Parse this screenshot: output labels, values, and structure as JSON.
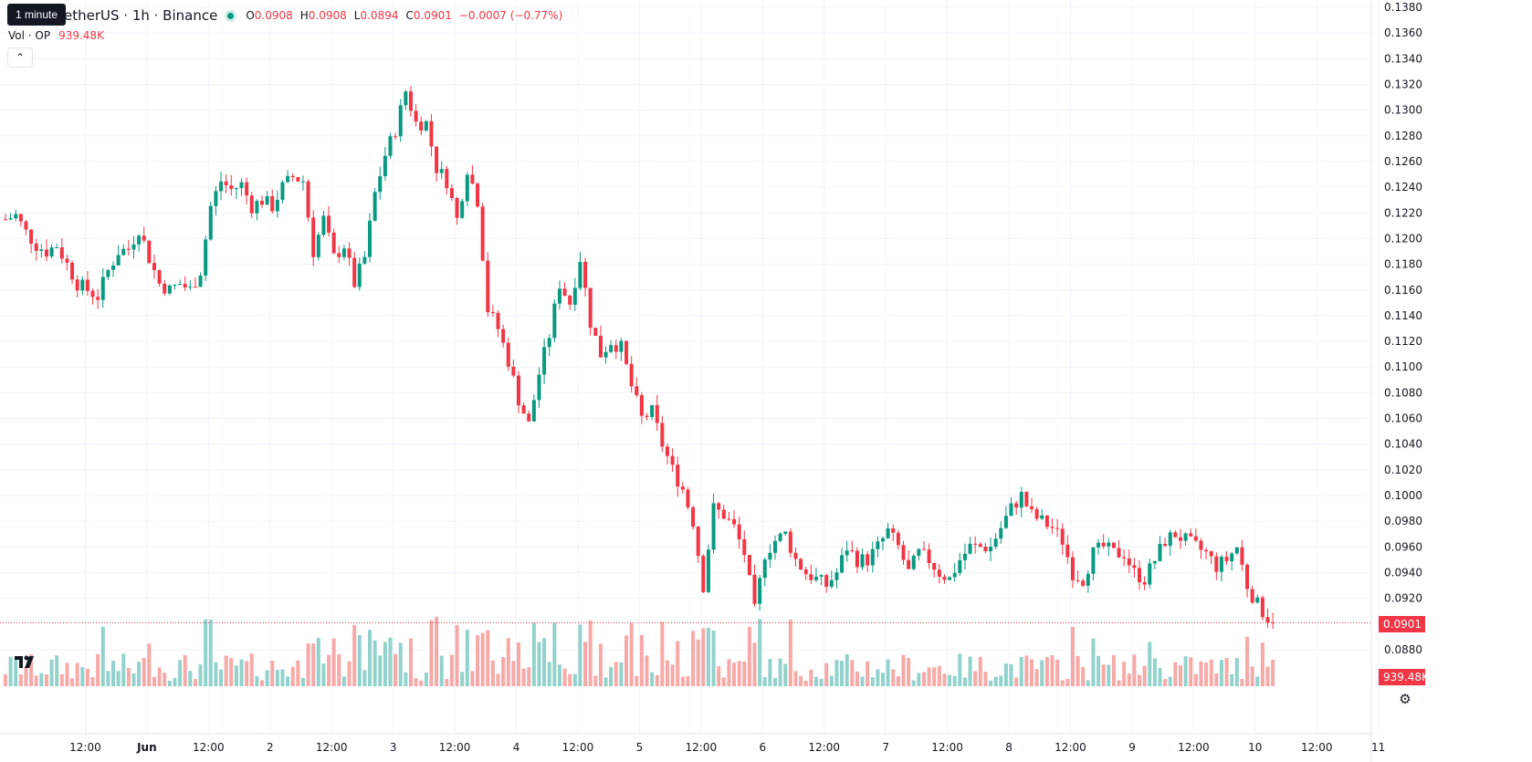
{
  "tooltip": "1 minute",
  "symbol_title": "etherUS · 1h · Binance",
  "ohlc": {
    "o_label": "O",
    "o": "0.0908",
    "h_label": "H",
    "h": "0.0908",
    "l_label": "L",
    "l": "0.0894",
    "c_label": "C",
    "c": "0.0901",
    "change": "−0.0007 (−0.77%)"
  },
  "volume": {
    "label": "Vol · OP",
    "value": "939.48K"
  },
  "colors": {
    "up": "#089981",
    "down": "#f23645",
    "vol_up": "#92d2cc",
    "vol_down": "#f7a9a7",
    "grid": "#f0f3fa",
    "text": "#131722"
  },
  "icons": [
    "tradingview-logo-icon",
    "settings-gear-icon",
    "chevron-up-icon",
    "live-dot-icon"
  ],
  "chart_data": {
    "type": "candlestick",
    "interval": "1h",
    "y_ticks": [
      "0.1380",
      "0.1360",
      "0.1340",
      "0.1320",
      "0.1300",
      "0.1280",
      "0.1260",
      "0.1240",
      "0.1220",
      "0.1200",
      "0.1180",
      "0.1160",
      "0.1140",
      "0.1120",
      "0.1100",
      "0.1080",
      "0.1060",
      "0.1040",
      "0.1020",
      "0.1000",
      "0.0980",
      "0.0960",
      "0.0940",
      "0.0920",
      "0.0880"
    ],
    "ylim": [
      0.0868,
      0.1388
    ],
    "x_ticks": [
      {
        "label": "12:00",
        "t": 12
      },
      {
        "label": "Jun",
        "t": 24,
        "bold": true
      },
      {
        "label": "12:00",
        "t": 36
      },
      {
        "label": "2",
        "t": 48
      },
      {
        "label": "12:00",
        "t": 60
      },
      {
        "label": "3",
        "t": 72
      },
      {
        "label": "12:00",
        "t": 84
      },
      {
        "label": "4",
        "t": 96
      },
      {
        "label": "12:00",
        "t": 108
      },
      {
        "label": "5",
        "t": 120
      },
      {
        "label": "12:00",
        "t": 132
      },
      {
        "label": "6",
        "t": 144
      },
      {
        "label": "12:00",
        "t": 156
      },
      {
        "label": "7",
        "t": 168
      },
      {
        "label": "12:00",
        "t": 180
      },
      {
        "label": "8",
        "t": 192
      },
      {
        "label": "12:00",
        "t": 204
      },
      {
        "label": "9",
        "t": 216
      },
      {
        "label": "12:00",
        "t": 228
      },
      {
        "label": "10",
        "t": 240
      },
      {
        "label": "12:00",
        "t": 252
      },
      {
        "label": "11",
        "t": 264
      }
    ],
    "last_price": "0.0901",
    "last_volume": "939.48K",
    "close_path": [
      [
        0,
        0.1215
      ],
      [
        2,
        0.1218
      ],
      [
        4,
        0.1205
      ],
      [
        6,
        0.1195
      ],
      [
        8,
        0.119
      ],
      [
        10,
        0.1195
      ],
      [
        12,
        0.118
      ],
      [
        14,
        0.1165
      ],
      [
        16,
        0.116
      ],
      [
        18,
        0.1155
      ],
      [
        20,
        0.1175
      ],
      [
        22,
        0.119
      ],
      [
        24,
        0.1192
      ],
      [
        26,
        0.1208
      ],
      [
        28,
        0.1185
      ],
      [
        30,
        0.1165
      ],
      [
        32,
        0.116
      ],
      [
        34,
        0.1165
      ],
      [
        36,
        0.116
      ],
      [
        38,
        0.1175
      ],
      [
        40,
        0.1225
      ],
      [
        42,
        0.1245
      ],
      [
        44,
        0.1238
      ],
      [
        46,
        0.1242
      ],
      [
        48,
        0.1225
      ],
      [
        50,
        0.123
      ],
      [
        52,
        0.1225
      ],
      [
        54,
        0.124
      ],
      [
        56,
        0.1248
      ],
      [
        58,
        0.1245
      ],
      [
        60,
        0.119
      ],
      [
        62,
        0.1215
      ],
      [
        64,
        0.1185
      ],
      [
        66,
        0.1195
      ],
      [
        68,
        0.1165
      ],
      [
        70,
        0.1185
      ],
      [
        72,
        0.1235
      ],
      [
        74,
        0.1265
      ],
      [
        76,
        0.1285
      ],
      [
        78,
        0.1315
      ],
      [
        80,
        0.129
      ],
      [
        82,
        0.129
      ],
      [
        84,
        0.1255
      ],
      [
        86,
        0.1245
      ],
      [
        88,
        0.1215
      ],
      [
        90,
        0.1255
      ],
      [
        92,
        0.123
      ],
      [
        94,
        0.1145
      ],
      [
        96,
        0.113
      ],
      [
        98,
        0.1105
      ],
      [
        100,
        0.1075
      ],
      [
        102,
        0.1055
      ],
      [
        104,
        0.1095
      ],
      [
        106,
        0.1125
      ],
      [
        108,
        0.1165
      ],
      [
        110,
        0.115
      ],
      [
        112,
        0.1185
      ],
      [
        114,
        0.1135
      ],
      [
        116,
        0.111
      ],
      [
        118,
        0.112
      ],
      [
        120,
        0.1115
      ],
      [
        122,
        0.1085
      ],
      [
        124,
        0.106
      ],
      [
        126,
        0.1065
      ],
      [
        128,
        0.104
      ],
      [
        130,
        0.102
      ],
      [
        132,
        0.1005
      ],
      [
        134,
        0.098
      ],
      [
        136,
        0.093
      ],
      [
        138,
        0.099
      ],
      [
        140,
        0.0985
      ],
      [
        142,
        0.0975
      ],
      [
        144,
        0.0955
      ],
      [
        146,
        0.091
      ],
      [
        148,
        0.0955
      ],
      [
        150,
        0.0965
      ],
      [
        152,
        0.097
      ],
      [
        154,
        0.095
      ],
      [
        156,
        0.094
      ],
      [
        158,
        0.0935
      ],
      [
        160,
        0.093
      ],
      [
        162,
        0.094
      ],
      [
        164,
        0.096
      ],
      [
        166,
        0.095
      ],
      [
        168,
        0.095
      ],
      [
        170,
        0.096
      ],
      [
        172,
        0.0972
      ],
      [
        174,
        0.096
      ],
      [
        176,
        0.094
      ],
      [
        178,
        0.0955
      ],
      [
        180,
        0.095
      ],
      [
        182,
        0.094
      ],
      [
        184,
        0.0935
      ],
      [
        186,
        0.095
      ],
      [
        188,
        0.096
      ],
      [
        190,
        0.096
      ],
      [
        192,
        0.096
      ],
      [
        194,
        0.0975
      ],
      [
        196,
        0.099
      ],
      [
        198,
        0.1
      ],
      [
        200,
        0.0985
      ],
      [
        202,
        0.098
      ],
      [
        204,
        0.0975
      ],
      [
        206,
        0.0965
      ],
      [
        208,
        0.094
      ],
      [
        210,
        0.0935
      ],
      [
        212,
        0.0955
      ],
      [
        214,
        0.096
      ],
      [
        216,
        0.0955
      ],
      [
        218,
        0.0955
      ],
      [
        220,
        0.094
      ],
      [
        222,
        0.0935
      ],
      [
        224,
        0.095
      ],
      [
        226,
        0.0965
      ],
      [
        228,
        0.097
      ],
      [
        230,
        0.0965
      ],
      [
        232,
        0.096
      ],
      [
        234,
        0.0955
      ],
      [
        236,
        0.0945
      ],
      [
        238,
        0.095
      ],
      [
        240,
        0.096
      ],
      [
        242,
        0.093
      ],
      [
        244,
        0.0915
      ],
      [
        246,
        0.0905
      ],
      [
        247,
        0.0901
      ]
    ]
  }
}
